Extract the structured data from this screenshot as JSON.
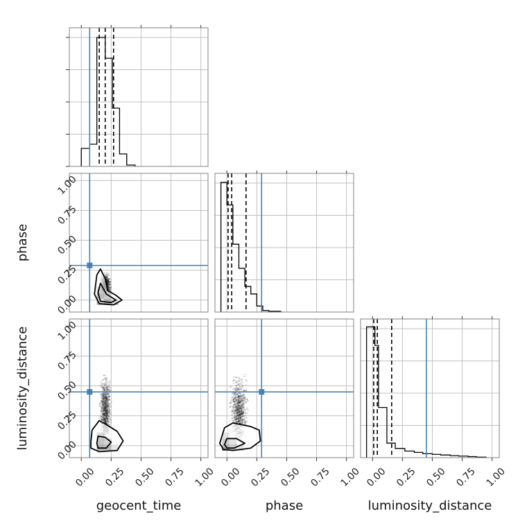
{
  "chart_data": {
    "type": "corner",
    "parameters": [
      "geocent_time",
      "phase",
      "luminosity_distance"
    ],
    "axis_range": [
      -0.1,
      1.06
    ],
    "ticks": [
      0.0,
      0.25,
      0.5,
      0.75,
      1.0
    ],
    "tick_labels": [
      "0.00",
      "0.25",
      "0.50",
      "0.75",
      "1.00"
    ],
    "grid": true,
    "colors": {
      "truth": "#4682b4",
      "hist": "#000000",
      "quantile": "#000000",
      "grid": "#c0c0c0",
      "frame": "#808080"
    },
    "truths": {
      "geocent_time": 0.07,
      "phase": 0.29,
      "luminosity_distance": 0.45
    },
    "histograms": [
      {
        "parameter": "geocent_time",
        "bin_edges": [
          0.0,
          0.07,
          0.13,
          0.2,
          0.26,
          0.32,
          0.38,
          0.45
        ],
        "counts": [
          0.13,
          0.16,
          0.93,
          0.78,
          0.42,
          0.09,
          0.01
        ],
        "ymax": 1.0,
        "quantiles": [
          0.15,
          0.2,
          0.27
        ]
      },
      {
        "parameter": "phase",
        "bin_edges": [
          -0.05,
          0.0,
          0.05,
          0.1,
          0.15,
          0.2,
          0.25,
          0.3,
          0.35,
          0.45
        ],
        "counts": [
          0.86,
          0.71,
          0.45,
          0.29,
          0.17,
          0.12,
          0.04,
          0.01,
          0.005
        ],
        "ymax": 0.92,
        "quantiles": [
          0.01,
          0.04,
          0.16
        ]
      },
      {
        "parameter": "luminosity_distance",
        "bin_edges": [
          -0.05,
          0.02,
          0.05,
          0.12,
          0.19,
          0.27,
          0.35,
          0.42,
          0.5,
          0.57,
          0.65,
          0.72,
          0.8,
          0.87,
          0.95
        ],
        "counts": [
          0.99,
          0.85,
          0.38,
          0.11,
          0.07,
          0.05,
          0.04,
          0.03,
          0.025,
          0.02,
          0.015,
          0.012,
          0.008,
          0.004
        ],
        "ymax": 1.05,
        "quantiles": [
          0.01,
          0.04,
          0.16
        ]
      }
    ],
    "scatter": [
      {
        "x": "geocent_time",
        "y": "phase",
        "center": [
          0.2,
          0.13
        ],
        "spread": [
          0.055,
          0.11
        ],
        "skew": "positive-y",
        "points": 700,
        "seed": 3
      },
      {
        "x": "geocent_time",
        "y": "luminosity_distance",
        "center": [
          0.2,
          0.3
        ],
        "spread": [
          0.06,
          0.35
        ],
        "skew": "positive-y",
        "points": 900,
        "seed": 5
      },
      {
        "x": "phase",
        "y": "luminosity_distance",
        "center": [
          0.1,
          0.3
        ],
        "spread": [
          0.09,
          0.35
        ],
        "skew": "positive-both",
        "points": 900,
        "seed": 9
      }
    ],
    "contours": [
      {
        "x": "geocent_time",
        "y": "phase",
        "inner": [
          [
            0.14,
            0.06
          ],
          [
            0.16,
            0.14
          ],
          [
            0.21,
            0.05
          ],
          [
            0.29,
            0.0
          ],
          [
            0.25,
            -0.02
          ],
          [
            0.16,
            -0.01
          ]
        ],
        "outer": [
          [
            0.11,
            0.05
          ],
          [
            0.13,
            0.21
          ],
          [
            0.16,
            0.26
          ],
          [
            0.2,
            0.18
          ],
          [
            0.22,
            0.08
          ],
          [
            0.29,
            0.04
          ],
          [
            0.34,
            0.0
          ],
          [
            0.27,
            -0.04
          ],
          [
            0.15,
            -0.03
          ]
        ]
      },
      {
        "x": "geocent_time",
        "y": "luminosity_distance",
        "inner": [
          [
            0.13,
            0.02
          ],
          [
            0.14,
            0.08
          ],
          [
            0.2,
            0.07
          ],
          [
            0.25,
            0.03
          ],
          [
            0.21,
            -0.02
          ],
          [
            0.14,
            -0.02
          ]
        ],
        "outer": [
          [
            0.08,
            0.03
          ],
          [
            0.09,
            0.13
          ],
          [
            0.15,
            0.21
          ],
          [
            0.22,
            0.17
          ],
          [
            0.3,
            0.12
          ],
          [
            0.35,
            0.04
          ],
          [
            0.3,
            -0.04
          ],
          [
            0.15,
            -0.05
          ],
          [
            0.08,
            -0.02
          ]
        ]
      },
      {
        "x": "phase",
        "y": "luminosity_distance",
        "inner": [
          [
            -0.02,
            0.01
          ],
          [
            0.0,
            0.06
          ],
          [
            0.08,
            0.06
          ],
          [
            0.15,
            0.02
          ],
          [
            0.06,
            -0.02
          ],
          [
            0.0,
            -0.02
          ]
        ],
        "outer": [
          [
            -0.06,
            0.02
          ],
          [
            -0.02,
            0.15
          ],
          [
            0.05,
            0.19
          ],
          [
            0.2,
            0.16
          ],
          [
            0.27,
            0.13
          ],
          [
            0.28,
            0.04
          ],
          [
            0.2,
            -0.02
          ],
          [
            0.05,
            -0.04
          ],
          [
            -0.03,
            -0.03
          ]
        ]
      }
    ],
    "density_cells": [
      {
        "x": "geocent_time",
        "y": "phase",
        "cells": [
          [
            0.13,
            -0.04,
            0.06,
            0.05,
            0.35
          ],
          [
            0.13,
            0.01,
            0.06,
            0.05,
            0.75
          ],
          [
            0.19,
            -0.04,
            0.06,
            0.05,
            0.85
          ],
          [
            0.19,
            0.01,
            0.06,
            0.05,
            0.55
          ],
          [
            0.13,
            0.06,
            0.06,
            0.05,
            0.45
          ],
          [
            0.19,
            0.06,
            0.06,
            0.05,
            0.3
          ],
          [
            0.25,
            -0.04,
            0.06,
            0.05,
            0.35
          ]
        ]
      },
      {
        "x": "geocent_time",
        "y": "luminosity_distance",
        "cells": [
          [
            0.13,
            -0.04,
            0.06,
            0.05,
            0.85
          ],
          [
            0.13,
            0.01,
            0.06,
            0.05,
            0.65
          ],
          [
            0.19,
            -0.04,
            0.06,
            0.05,
            0.75
          ],
          [
            0.19,
            0.01,
            0.06,
            0.05,
            0.45
          ],
          [
            0.13,
            0.06,
            0.06,
            0.05,
            0.4
          ],
          [
            0.25,
            -0.04,
            0.06,
            0.05,
            0.25
          ]
        ]
      },
      {
        "x": "phase",
        "y": "luminosity_distance",
        "cells": [
          [
            -0.04,
            -0.04,
            0.06,
            0.05,
            0.85
          ],
          [
            -0.04,
            0.01,
            0.06,
            0.05,
            0.55
          ],
          [
            0.02,
            -0.04,
            0.06,
            0.05,
            0.55
          ],
          [
            0.02,
            0.01,
            0.06,
            0.05,
            0.3
          ],
          [
            -0.04,
            0.06,
            0.06,
            0.05,
            0.3
          ],
          [
            0.08,
            -0.04,
            0.06,
            0.05,
            0.25
          ]
        ]
      }
    ]
  }
}
